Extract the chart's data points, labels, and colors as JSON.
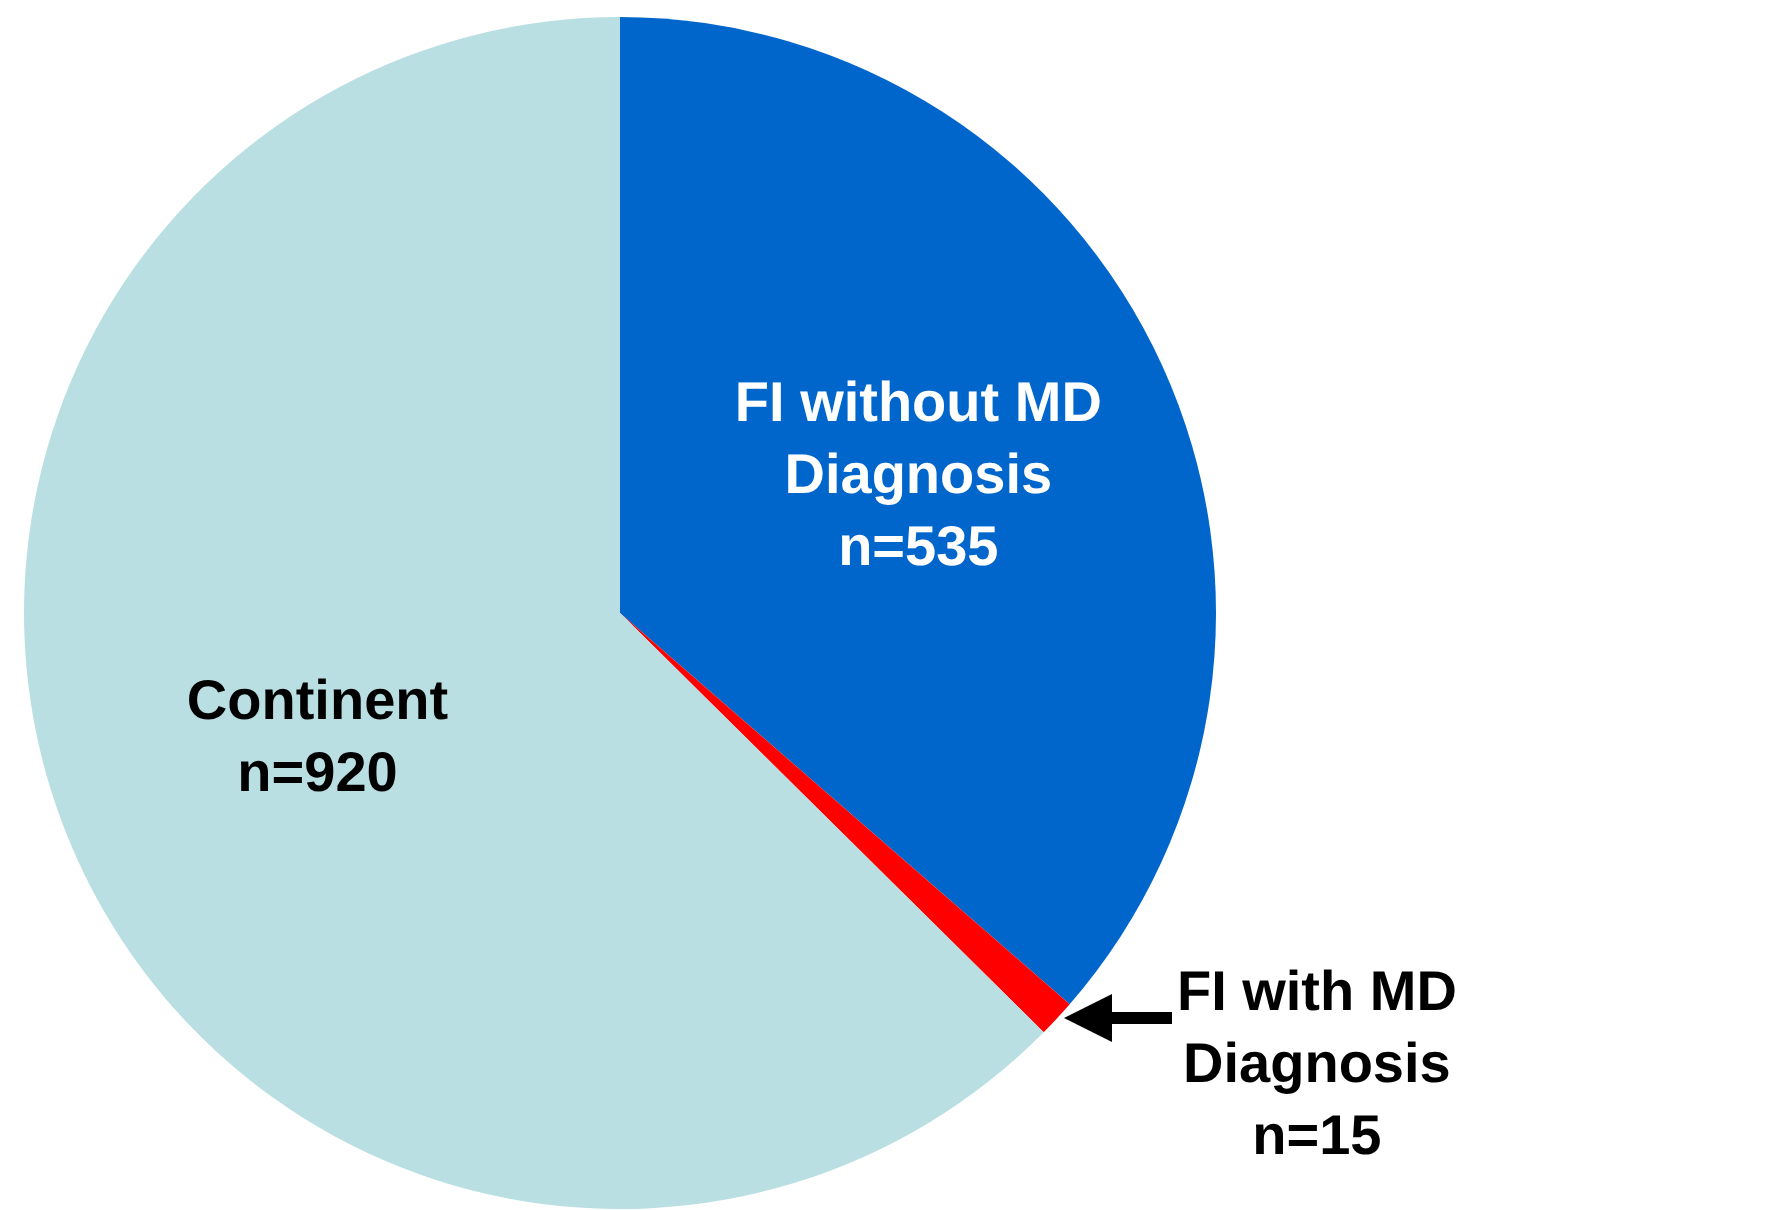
{
  "chart_data": {
    "type": "pie",
    "categories": [
      "FI without MD Diagnosis",
      "FI with MD Diagnosis",
      "Continent"
    ],
    "values": [
      535,
      15,
      920
    ],
    "value_labels": [
      "n=535",
      "n=15",
      "n=920"
    ],
    "colors": [
      "#0066cc",
      "#ff0000",
      "#b9dfe2"
    ]
  }
}
